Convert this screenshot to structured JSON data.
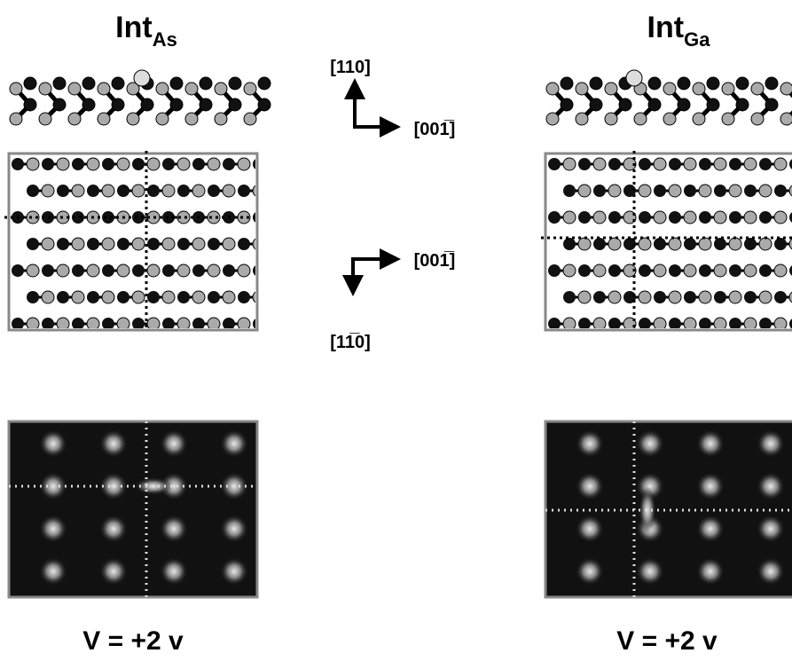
{
  "panels": [
    {
      "title": "Int",
      "subscript": "As",
      "caption": "V = +2 v"
    },
    {
      "title": "Int",
      "subscript": "Ga",
      "caption": "V = +2 v"
    }
  ],
  "axes_top": {
    "up": "[110]",
    "right": "[001̅]"
  },
  "axes_bottom": {
    "right": "[001̅]",
    "down": "[11̅0]"
  }
}
